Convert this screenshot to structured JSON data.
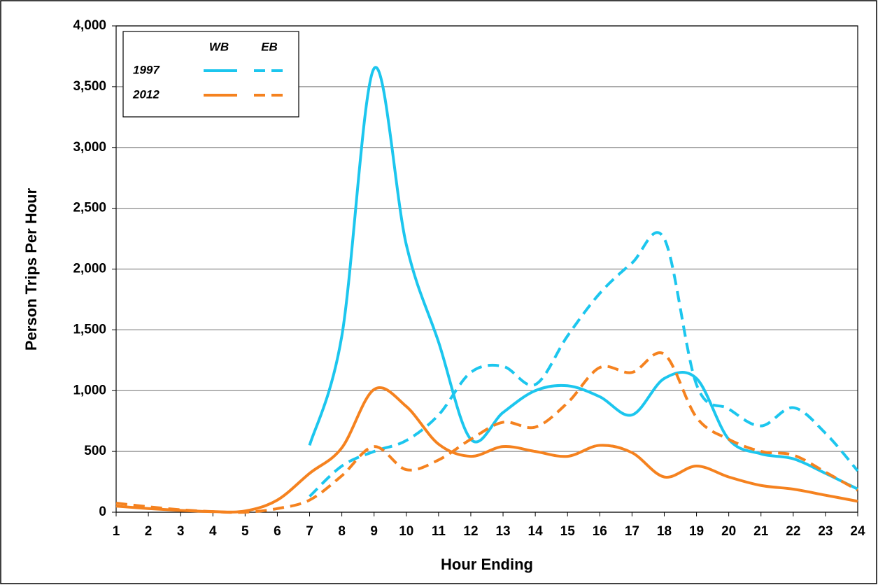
{
  "chart_data": {
    "type": "line",
    "x_label": "Hour Ending",
    "y_label": "Person Trips Per Hour",
    "x": [
      1,
      2,
      3,
      4,
      5,
      6,
      7,
      8,
      9,
      10,
      11,
      12,
      13,
      14,
      15,
      16,
      17,
      18,
      19,
      20,
      21,
      22,
      23,
      24
    ],
    "xlim": [
      1,
      24
    ],
    "xticks": [
      1,
      2,
      3,
      4,
      5,
      6,
      7,
      8,
      9,
      10,
      11,
      12,
      13,
      14,
      15,
      16,
      17,
      18,
      19,
      20,
      21,
      22,
      23,
      24
    ],
    "ylim": [
      0,
      4000
    ],
    "yticks": [
      0,
      {
        "value": 500,
        "label": "500"
      },
      {
        "value": 1000,
        "label": "1,000"
      },
      {
        "value": 1500,
        "label": "1,500"
      },
      {
        "value": 2000,
        "label": "2,000"
      },
      {
        "value": 2500,
        "label": "2,500"
      },
      {
        "value": 3000,
        "label": "3,000"
      },
      {
        "value": 3500,
        "label": "3,500"
      },
      {
        "value": 4000,
        "label": "4,000"
      }
    ],
    "grid": true,
    "legend": {
      "columns": [
        "WB",
        "EB"
      ],
      "rows": [
        "1997",
        "2012"
      ],
      "position": "upper left"
    },
    "series": [
      {
        "color": "#1cc6ee",
        "dashed": false,
        "values": [
          null,
          null,
          null,
          null,
          null,
          null,
          550,
          1450,
          3650,
          2200,
          1400,
          600,
          820,
          1000,
          1040,
          950,
          800,
          1100,
          1100,
          600,
          480,
          440,
          320,
          190
        ]
      },
      {
        "color": "#1cc6ee",
        "dashed": true,
        "values": [
          null,
          null,
          null,
          null,
          null,
          null,
          130,
          380,
          500,
          590,
          800,
          1150,
          1200,
          1050,
          1450,
          1800,
          2050,
          2250,
          1050,
          850,
          710,
          860,
          650,
          340
        ]
      },
      {
        "color": "#f5821f",
        "dashed": false,
        "values": [
          50,
          30,
          15,
          5,
          10,
          100,
          320,
          530,
          1010,
          870,
          560,
          460,
          540,
          500,
          460,
          550,
          490,
          290,
          380,
          290,
          220,
          190,
          140,
          90
        ]
      },
      {
        "color": "#f5821f",
        "dashed": true,
        "values": [
          75,
          45,
          20,
          5,
          0,
          30,
          100,
          300,
          540,
          350,
          430,
          600,
          740,
          700,
          900,
          1190,
          1150,
          1300,
          780,
          600,
          500,
          470,
          330,
          180
        ]
      }
    ]
  }
}
